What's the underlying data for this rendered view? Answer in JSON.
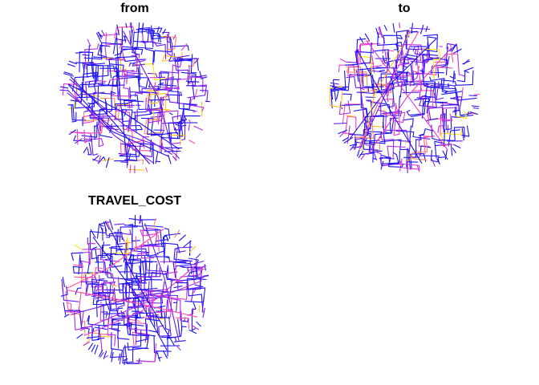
{
  "figure": {
    "panels": [
      {
        "title": "from"
      },
      {
        "title": "to"
      },
      {
        "title": "TRAVEL_COST"
      }
    ]
  },
  "colors": {
    "palette": [
      "#0D0887",
      "#1E12F2",
      "#6A1BEF",
      "#B32BE6",
      "#E63BD0",
      "#FF4FA2",
      "#FF8A5C",
      "#FFC21E",
      "#FFE600"
    ],
    "background": "#ffffff",
    "title": "#000000"
  }
}
